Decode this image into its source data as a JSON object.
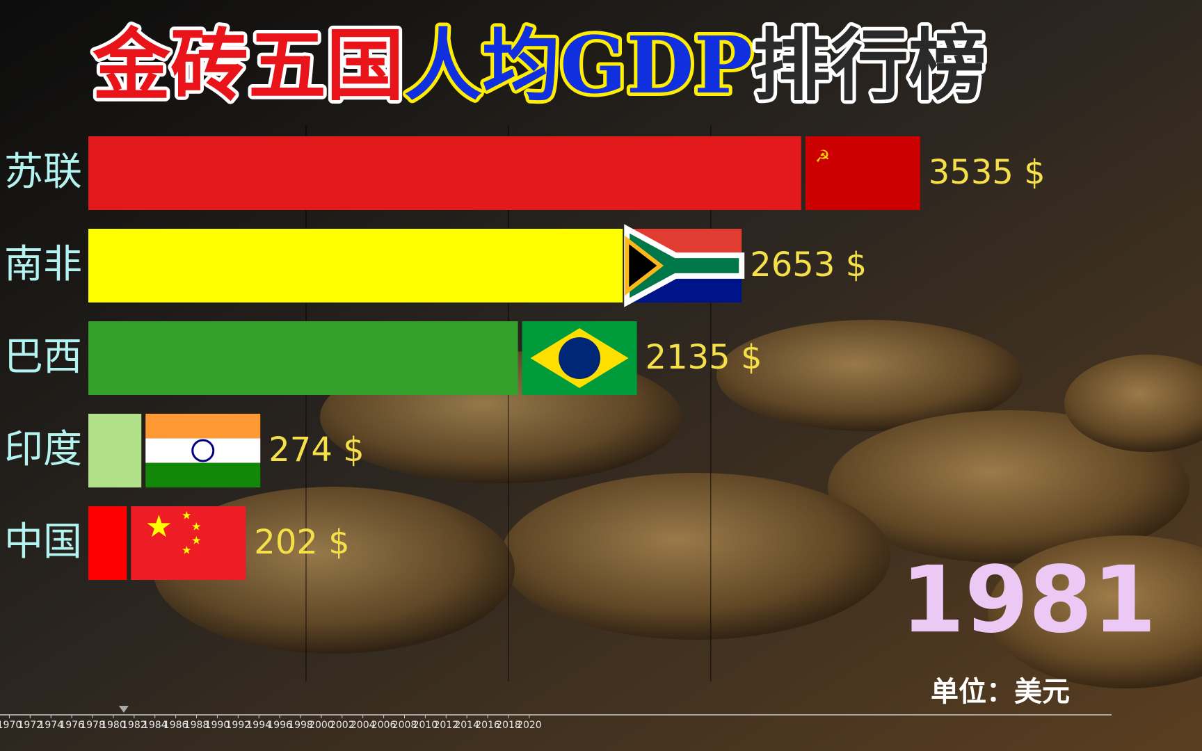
{
  "chart_data": {
    "type": "bar",
    "orientation": "horizontal",
    "title": [
      "金砖五国",
      "人均GDP",
      "排行榜"
    ],
    "categories": [
      "苏联",
      "南非",
      "巴西",
      "印度",
      "中国"
    ],
    "values": [
      3535,
      2653,
      2135,
      274,
      202
    ],
    "value_labels": [
      "3535 $",
      "2653 $",
      "2135 $",
      "274 $",
      "202 $"
    ],
    "colors": [
      "#e31a1c",
      "#ffff00",
      "#33a02c",
      "#b2df8a",
      "#ff0000"
    ],
    "xlim": [
      -576,
      4770
    ],
    "xticks": [
      500,
      1500,
      2500
    ],
    "grid": true,
    "year": 1981,
    "unit": "单位：美元",
    "timeline": {
      "xlim": [
        1969.1,
        2076
      ],
      "xticks": [
        1970,
        1972,
        1974,
        1976,
        1978,
        1980,
        1982,
        1984,
        1986,
        1988,
        1990,
        1992,
        1994,
        1996,
        1998,
        2000,
        2002,
        2004,
        2006,
        2008,
        2010,
        2012,
        2014,
        2016,
        2018,
        2020
      ]
    }
  }
}
